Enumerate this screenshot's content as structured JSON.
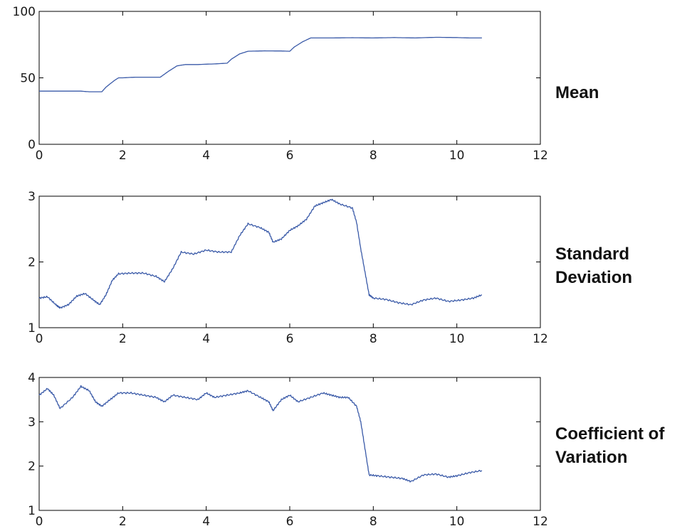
{
  "colors": {
    "series": "#3a5aa8",
    "axes": "#000000"
  },
  "chart_data": [
    {
      "type": "line",
      "label": "Mean",
      "xlim": [
        0,
        12
      ],
      "ylim": [
        0,
        100
      ],
      "xticks": [
        0,
        2,
        4,
        6,
        8,
        10,
        12
      ],
      "yticks": [
        0,
        50,
        100
      ],
      "series": [
        {
          "x": [
            0,
            0.4,
            0.8,
            1.0,
            1.2,
            1.5,
            1.6,
            1.8,
            1.9,
            2.0,
            2.3,
            2.6,
            2.9,
            3.1,
            3.3,
            3.5,
            3.8,
            4.2,
            4.5,
            4.6,
            4.8,
            5.0,
            5.4,
            5.8,
            6.0,
            6.1,
            6.3,
            6.5,
            7.0,
            7.5,
            8.0,
            8.5,
            9.0,
            9.5,
            10.0,
            10.3,
            10.6
          ],
          "y": [
            40,
            40,
            40,
            40,
            39.5,
            39.5,
            43,
            48,
            50,
            50,
            50.5,
            50.5,
            50.5,
            55,
            59,
            60,
            60,
            60.5,
            61,
            64,
            68,
            70,
            70.3,
            70.2,
            70,
            73,
            77,
            80,
            80,
            80.2,
            80,
            80.3,
            80,
            80.5,
            80.3,
            80,
            80
          ]
        }
      ]
    },
    {
      "type": "line",
      "label": "Standard Deviation",
      "xlim": [
        0,
        12
      ],
      "ylim": [
        1,
        3
      ],
      "xticks": [
        0,
        2,
        4,
        6,
        8,
        10,
        12
      ],
      "yticks": [
        1,
        2,
        3
      ],
      "series": [
        {
          "x": [
            0,
            0.2,
            0.4,
            0.5,
            0.7,
            0.9,
            1.1,
            1.3,
            1.45,
            1.6,
            1.75,
            1.9,
            2.2,
            2.5,
            2.8,
            3.0,
            3.2,
            3.4,
            3.7,
            4.0,
            4.3,
            4.6,
            4.8,
            5.0,
            5.3,
            5.5,
            5.6,
            5.8,
            6.0,
            6.2,
            6.4,
            6.6,
            6.8,
            7.0,
            7.2,
            7.5,
            7.6,
            7.7,
            7.8,
            7.9,
            8.0,
            8.3,
            8.6,
            8.9,
            9.2,
            9.5,
            9.8,
            10.1,
            10.4,
            10.6
          ],
          "y": [
            1.45,
            1.47,
            1.35,
            1.3,
            1.35,
            1.48,
            1.52,
            1.42,
            1.35,
            1.5,
            1.72,
            1.82,
            1.83,
            1.83,
            1.78,
            1.7,
            1.9,
            2.15,
            2.12,
            2.18,
            2.15,
            2.15,
            2.4,
            2.58,
            2.52,
            2.45,
            2.3,
            2.35,
            2.48,
            2.55,
            2.65,
            2.85,
            2.9,
            2.95,
            2.88,
            2.82,
            2.6,
            2.2,
            1.85,
            1.5,
            1.45,
            1.43,
            1.38,
            1.35,
            1.42,
            1.45,
            1.4,
            1.42,
            1.45,
            1.5
          ]
        }
      ]
    },
    {
      "type": "line",
      "label": "Coefficient of Variation",
      "xlim": [
        0,
        12
      ],
      "ylim": [
        1,
        4
      ],
      "xticks": [
        0,
        2,
        4,
        6,
        8,
        10,
        12
      ],
      "yticks": [
        1,
        2,
        3,
        4
      ],
      "series": [
        {
          "x": [
            0,
            0.2,
            0.35,
            0.5,
            0.8,
            1.0,
            1.2,
            1.35,
            1.5,
            1.7,
            1.9,
            2.2,
            2.5,
            2.8,
            3.0,
            3.2,
            3.5,
            3.8,
            4.0,
            4.2,
            4.5,
            4.8,
            5.0,
            5.3,
            5.5,
            5.6,
            5.8,
            6.0,
            6.2,
            6.5,
            6.8,
            7.0,
            7.2,
            7.4,
            7.6,
            7.7,
            7.8,
            7.9,
            8.1,
            8.4,
            8.7,
            8.9,
            9.2,
            9.5,
            9.8,
            10.0,
            10.3,
            10.6
          ],
          "y": [
            3.6,
            3.75,
            3.6,
            3.3,
            3.55,
            3.8,
            3.7,
            3.45,
            3.35,
            3.5,
            3.65,
            3.65,
            3.6,
            3.55,
            3.45,
            3.6,
            3.55,
            3.5,
            3.65,
            3.55,
            3.6,
            3.65,
            3.7,
            3.55,
            3.45,
            3.25,
            3.5,
            3.6,
            3.45,
            3.55,
            3.65,
            3.6,
            3.55,
            3.55,
            3.35,
            3.0,
            2.4,
            1.8,
            1.78,
            1.75,
            1.72,
            1.65,
            1.8,
            1.82,
            1.75,
            1.78,
            1.85,
            1.9
          ]
        }
      ]
    }
  ]
}
